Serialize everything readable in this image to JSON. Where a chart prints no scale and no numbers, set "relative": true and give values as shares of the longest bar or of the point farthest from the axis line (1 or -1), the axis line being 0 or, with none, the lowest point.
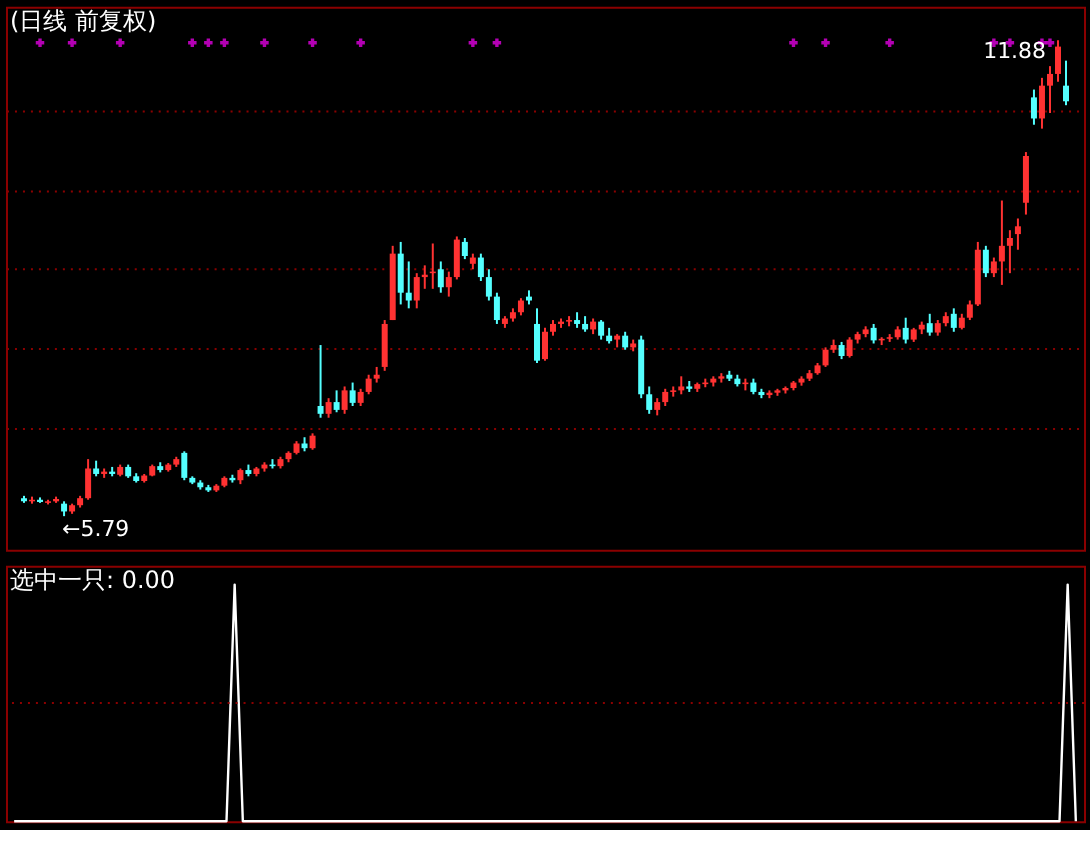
{
  "chart_data": [
    {
      "type": "candlestick",
      "title": "(日线 前复权)",
      "categories": [
        null,
        null,
        null,
        null,
        null,
        null,
        null,
        null,
        null,
        null,
        null,
        null,
        null,
        null,
        null,
        null,
        null,
        null,
        null,
        null,
        null,
        null,
        null,
        null,
        null,
        null,
        null,
        null,
        null,
        null,
        null,
        null,
        null,
        null,
        null,
        null,
        null,
        null,
        null,
        null,
        null,
        null,
        null,
        null,
        null,
        null,
        null,
        null,
        null,
        null,
        null,
        null,
        null,
        null,
        null,
        null,
        null,
        null,
        null,
        null,
        null,
        null,
        null,
        null,
        null,
        null,
        null,
        null,
        null,
        null,
        null,
        null,
        null,
        null,
        null,
        null,
        null,
        null,
        null,
        null,
        null,
        null,
        null,
        null,
        null,
        null,
        null,
        null,
        null,
        null,
        null,
        null,
        null,
        null,
        null,
        null,
        null,
        null,
        null,
        null,
        null,
        null,
        null,
        null,
        null,
        null,
        null,
        null,
        null,
        null,
        null,
        null,
        null,
        null,
        null,
        null,
        null,
        null,
        null,
        null,
        null,
        null,
        null,
        null,
        null,
        null,
        null,
        null,
        null,
        null,
        null
      ],
      "ohlc": [
        [
          6.02,
          6.05,
          5.96,
          5.98
        ],
        [
          5.98,
          6.04,
          5.95,
          6.0
        ],
        [
          6.0,
          6.03,
          5.96,
          5.97
        ],
        [
          5.96,
          6.0,
          5.94,
          5.98
        ],
        [
          5.98,
          6.04,
          5.96,
          6.01
        ],
        [
          5.95,
          5.98,
          5.79,
          5.85
        ],
        [
          5.85,
          5.95,
          5.82,
          5.93
        ],
        [
          5.93,
          6.05,
          5.9,
          6.02
        ],
        [
          6.02,
          6.52,
          6.0,
          6.4
        ],
        [
          6.4,
          6.5,
          6.3,
          6.33
        ],
        [
          6.33,
          6.4,
          6.28,
          6.36
        ],
        [
          6.36,
          6.42,
          6.3,
          6.33
        ],
        [
          6.32,
          6.45,
          6.3,
          6.42
        ],
        [
          6.42,
          6.45,
          6.28,
          6.3
        ],
        [
          6.3,
          6.34,
          6.22,
          6.24
        ],
        [
          6.24,
          6.33,
          6.22,
          6.31
        ],
        [
          6.31,
          6.45,
          6.3,
          6.43
        ],
        [
          6.43,
          6.48,
          6.35,
          6.38
        ],
        [
          6.38,
          6.47,
          6.36,
          6.45
        ],
        [
          6.45,
          6.55,
          6.42,
          6.52
        ],
        [
          6.6,
          6.62,
          6.25,
          6.28
        ],
        [
          6.28,
          6.3,
          6.2,
          6.22
        ],
        [
          6.22,
          6.25,
          6.13,
          6.16
        ],
        [
          6.16,
          6.19,
          6.1,
          6.12
        ],
        [
          6.12,
          6.2,
          6.1,
          6.18
        ],
        [
          6.18,
          6.3,
          6.16,
          6.28
        ],
        [
          6.28,
          6.32,
          6.22,
          6.25
        ],
        [
          6.25,
          6.4,
          6.2,
          6.38
        ],
        [
          6.38,
          6.45,
          6.3,
          6.33
        ],
        [
          6.33,
          6.42,
          6.3,
          6.4
        ],
        [
          6.4,
          6.48,
          6.36,
          6.45
        ],
        [
          6.45,
          6.52,
          6.4,
          6.43
        ],
        [
          6.43,
          6.55,
          6.4,
          6.52
        ],
        [
          6.52,
          6.62,
          6.48,
          6.6
        ],
        [
          6.6,
          6.75,
          6.58,
          6.72
        ],
        [
          6.72,
          6.8,
          6.62,
          6.66
        ],
        [
          6.66,
          6.85,
          6.64,
          6.82
        ],
        [
          7.2,
          7.98,
          7.05,
          7.1
        ],
        [
          7.1,
          7.3,
          7.05,
          7.25
        ],
        [
          7.25,
          7.4,
          7.12,
          7.15
        ],
        [
          7.15,
          7.45,
          7.1,
          7.4
        ],
        [
          7.4,
          7.5,
          7.2,
          7.24
        ],
        [
          7.24,
          7.42,
          7.2,
          7.38
        ],
        [
          7.38,
          7.6,
          7.35,
          7.55
        ],
        [
          7.55,
          7.7,
          7.5,
          7.6
        ],
        [
          7.7,
          8.3,
          7.65,
          8.25
        ],
        [
          8.3,
          9.25,
          8.3,
          9.15
        ],
        [
          9.15,
          9.3,
          8.5,
          8.65
        ],
        [
          8.65,
          9.05,
          8.45,
          8.55
        ],
        [
          8.55,
          8.9,
          8.45,
          8.85
        ],
        [
          8.85,
          9.0,
          8.7,
          8.88
        ],
        [
          8.9,
          9.28,
          8.7,
          8.92
        ],
        [
          8.95,
          9.05,
          8.65,
          8.72
        ],
        [
          8.72,
          8.92,
          8.6,
          8.85
        ],
        [
          8.85,
          9.37,
          8.82,
          9.33
        ],
        [
          9.3,
          9.35,
          9.08,
          9.12
        ],
        [
          9.02,
          9.15,
          8.95,
          9.1
        ],
        [
          9.1,
          9.15,
          8.8,
          8.85
        ],
        [
          8.85,
          8.95,
          8.55,
          8.6
        ],
        [
          8.6,
          8.65,
          8.25,
          8.3
        ],
        [
          8.25,
          8.35,
          8.2,
          8.32
        ],
        [
          8.32,
          8.45,
          8.28,
          8.4
        ],
        [
          8.4,
          8.58,
          8.36,
          8.55
        ],
        [
          8.6,
          8.68,
          8.5,
          8.55
        ],
        [
          8.25,
          8.45,
          7.75,
          7.78
        ],
        [
          7.8,
          8.2,
          7.78,
          8.15
        ],
        [
          8.15,
          8.3,
          8.1,
          8.25
        ],
        [
          8.25,
          8.32,
          8.2,
          8.28
        ],
        [
          8.28,
          8.35,
          8.22,
          8.3
        ],
        [
          8.3,
          8.4,
          8.2,
          8.25
        ],
        [
          8.25,
          8.35,
          8.15,
          8.18
        ],
        [
          8.18,
          8.32,
          8.12,
          8.28
        ],
        [
          8.28,
          8.3,
          8.05,
          8.1
        ],
        [
          8.1,
          8.2,
          8.0,
          8.03
        ],
        [
          8.05,
          8.12,
          7.95,
          8.1
        ],
        [
          8.1,
          8.15,
          7.92,
          7.95
        ],
        [
          7.95,
          8.05,
          7.9,
          8.0
        ],
        [
          8.05,
          8.1,
          7.3,
          7.35
        ],
        [
          7.35,
          7.45,
          7.1,
          7.15
        ],
        [
          7.15,
          7.3,
          7.08,
          7.25
        ],
        [
          7.25,
          7.42,
          7.2,
          7.38
        ],
        [
          7.38,
          7.45,
          7.32,
          7.4
        ],
        [
          7.4,
          7.58,
          7.35,
          7.45
        ],
        [
          7.45,
          7.52,
          7.38,
          7.42
        ],
        [
          7.42,
          7.5,
          7.38,
          7.48
        ],
        [
          7.48,
          7.55,
          7.44,
          7.5
        ],
        [
          7.5,
          7.58,
          7.45,
          7.55
        ],
        [
          7.55,
          7.62,
          7.5,
          7.58
        ],
        [
          7.6,
          7.65,
          7.52,
          7.55
        ],
        [
          7.55,
          7.6,
          7.45,
          7.48
        ],
        [
          7.48,
          7.55,
          7.4,
          7.5
        ],
        [
          7.5,
          7.55,
          7.35,
          7.38
        ],
        [
          7.38,
          7.42,
          7.3,
          7.34
        ],
        [
          7.34,
          7.4,
          7.3,
          7.37
        ],
        [
          7.37,
          7.42,
          7.33,
          7.4
        ],
        [
          7.4,
          7.45,
          7.36,
          7.43
        ],
        [
          7.43,
          7.52,
          7.4,
          7.5
        ],
        [
          7.5,
          7.58,
          7.46,
          7.55
        ],
        [
          7.55,
          7.66,
          7.52,
          7.62
        ],
        [
          7.62,
          7.75,
          7.6,
          7.72
        ],
        [
          7.72,
          7.95,
          7.7,
          7.92
        ],
        [
          7.92,
          8.05,
          7.88,
          7.98
        ],
        [
          7.98,
          8.02,
          7.8,
          7.84
        ],
        [
          7.84,
          8.08,
          7.82,
          8.05
        ],
        [
          8.05,
          8.15,
          8.0,
          8.12
        ],
        [
          8.12,
          8.22,
          8.08,
          8.18
        ],
        [
          8.2,
          8.25,
          8.0,
          8.04
        ],
        [
          8.04,
          8.08,
          7.98,
          8.06
        ],
        [
          8.06,
          8.12,
          8.02,
          8.08
        ],
        [
          8.08,
          8.22,
          8.05,
          8.18
        ],
        [
          8.2,
          8.33,
          8.0,
          8.05
        ],
        [
          8.05,
          8.2,
          8.02,
          8.18
        ],
        [
          8.18,
          8.28,
          8.12,
          8.24
        ],
        [
          8.26,
          8.38,
          8.1,
          8.14
        ],
        [
          8.14,
          8.3,
          8.1,
          8.26
        ],
        [
          8.26,
          8.4,
          8.22,
          8.35
        ],
        [
          8.38,
          8.45,
          8.15,
          8.2
        ],
        [
          8.2,
          8.38,
          8.18,
          8.33
        ],
        [
          8.33,
          8.55,
          8.3,
          8.5
        ],
        [
          8.5,
          9.3,
          8.48,
          9.2
        ],
        [
          9.2,
          9.25,
          8.85,
          8.9
        ],
        [
          8.9,
          9.1,
          8.85,
          9.05
        ],
        [
          9.05,
          9.83,
          8.75,
          9.25
        ],
        [
          9.25,
          9.45,
          8.9,
          9.35
        ],
        [
          9.4,
          9.6,
          9.2,
          9.5
        ],
        [
          9.8,
          10.45,
          9.65,
          10.4
        ],
        [
          11.15,
          11.25,
          10.8,
          10.88
        ],
        [
          10.88,
          11.4,
          10.75,
          11.3
        ],
        [
          11.3,
          11.55,
          10.95,
          11.45
        ],
        [
          11.45,
          11.88,
          11.35,
          11.8
        ],
        [
          11.3,
          11.62,
          11.05,
          11.1
        ]
      ],
      "colors": [
        "#54ffff",
        "#ff3232",
        "#54ffff",
        "#ff3232",
        "#ff3232",
        "#54ffff",
        "#ff3232",
        "#ff3232",
        "#ff3232",
        "#54ffff",
        "#ff3232",
        "#54ffff",
        "#ff3232",
        "#54ffff",
        "#54ffff",
        "#ff3232",
        "#ff3232",
        "#54ffff",
        "#ff3232",
        "#ff3232",
        "#54ffff",
        "#54ffff",
        "#54ffff",
        "#54ffff",
        "#ff3232",
        "#ff3232",
        "#54ffff",
        "#ff3232",
        "#54ffff",
        "#ff3232",
        "#ff3232",
        "#54ffff",
        "#ff3232",
        "#ff3232",
        "#ff3232",
        "#54ffff",
        "#ff3232",
        "#54ffff",
        "#ff3232",
        "#54ffff",
        "#ff3232",
        "#54ffff",
        "#ff3232",
        "#ff3232",
        "#ff3232",
        "#ff3232",
        "#ff3232",
        "#54ffff",
        "#54ffff",
        "#ff3232",
        "#ff3232",
        "#ff3232",
        "#54ffff",
        "#ff3232",
        "#ff3232",
        "#54ffff",
        "#ff3232",
        "#54ffff",
        "#54ffff",
        "#54ffff",
        "#ff3232",
        "#ff3232",
        "#ff3232",
        "#54ffff",
        "#54ffff",
        "#ff3232",
        "#ff3232",
        "#ff3232",
        "#ff3232",
        "#54ffff",
        "#54ffff",
        "#ff3232",
        "#54ffff",
        "#54ffff",
        "#ff3232",
        "#54ffff",
        "#ff3232",
        "#54ffff",
        "#54ffff",
        "#ff3232",
        "#ff3232",
        "#ff3232",
        "#ff3232",
        "#54ffff",
        "#ff3232",
        "#ff3232",
        "#ff3232",
        "#ff3232",
        "#54ffff",
        "#54ffff",
        "#ff3232",
        "#54ffff",
        "#54ffff",
        "#ff3232",
        "#ff3232",
        "#ff3232",
        "#ff3232",
        "#ff3232",
        "#ff3232",
        "#ff3232",
        "#ff3232",
        "#ff3232",
        "#54ffff",
        "#ff3232",
        "#ff3232",
        "#ff3232",
        "#54ffff",
        "#ff3232",
        "#ff3232",
        "#ff3232",
        "#54ffff",
        "#ff3232",
        "#ff3232",
        "#54ffff",
        "#ff3232",
        "#ff3232",
        "#54ffff",
        "#ff3232",
        "#ff3232",
        "#ff3232",
        "#54ffff",
        "#ff3232",
        "#ff3232",
        "#ff3232",
        "#ff3232",
        "#ff3232",
        "#54ffff",
        "#ff3232",
        "#ff3232",
        "#ff3232",
        "#54ffff"
      ],
      "series": [
        {
          "type": "scatter",
          "marker": "cross",
          "color": "#ff00ff",
          "values": [
            null,
            null,
            11.85,
            null,
            null,
            null,
            11.85,
            null,
            null,
            null,
            null,
            null,
            11.85,
            null,
            null,
            null,
            null,
            null,
            null,
            null,
            null,
            11.85,
            null,
            11.85,
            null,
            11.85,
            null,
            null,
            null,
            null,
            11.85,
            null,
            null,
            null,
            null,
            null,
            11.85,
            null,
            null,
            null,
            null,
            null,
            11.85,
            null,
            null,
            null,
            null,
            null,
            null,
            null,
            null,
            null,
            null,
            null,
            null,
            null,
            11.85,
            null,
            null,
            11.85,
            null,
            null,
            null,
            null,
            null,
            null,
            null,
            null,
            null,
            null,
            null,
            null,
            null,
            null,
            null,
            null,
            null,
            null,
            null,
            null,
            null,
            null,
            null,
            null,
            null,
            null,
            null,
            null,
            null,
            null,
            null,
            null,
            null,
            null,
            null,
            null,
            11.85,
            null,
            null,
            null,
            11.85,
            null,
            null,
            null,
            null,
            null,
            null,
            null,
            11.85,
            null,
            null,
            null,
            null,
            null,
            null,
            null,
            null,
            null,
            null,
            null,
            null,
            11.85,
            null,
            11.85,
            null,
            null,
            null,
            11.85,
            11.85,
            null,
            null
          ]
        }
      ],
      "ylim": [
        5.36,
        12.31
      ],
      "yticks": [
        {
          "value": 6.93,
          "label": null
        },
        {
          "value": 7.94,
          "label": null
        },
        {
          "value": 8.95,
          "label": null
        },
        {
          "value": 9.96,
          "label": null
        },
        {
          "value": 10.97,
          "label": null
        }
      ],
      "grid": "y",
      "tick_labels": false,
      "annotations": [
        {
          "text": "11.88",
          "y": 11.88
        },
        "←5.79"
      ]
    },
    {
      "type": "line",
      "title": "选中一只: 0.00",
      "relative": true,
      "color": "#ffffff",
      "categories": [
        null,
        null,
        null,
        null,
        null,
        null,
        null,
        null,
        null,
        null,
        null,
        null,
        null,
        null,
        null,
        null,
        null,
        null,
        null,
        null,
        null,
        null,
        null,
        null,
        null,
        null,
        null,
        null,
        null,
        null,
        null,
        null,
        null,
        null,
        null,
        null,
        null,
        null,
        null,
        null,
        null,
        null,
        null,
        null,
        null,
        null,
        null,
        null,
        null,
        null,
        null,
        null,
        null,
        null,
        null,
        null,
        null,
        null,
        null,
        null,
        null,
        null,
        null,
        null,
        null,
        null,
        null,
        null,
        null,
        null,
        null,
        null,
        null,
        null,
        null,
        null,
        null,
        null,
        null,
        null,
        null,
        null,
        null,
        null,
        null,
        null,
        null,
        null,
        null,
        null,
        null,
        null,
        null,
        null,
        null,
        null,
        null,
        null,
        null,
        null,
        null,
        null,
        null,
        null,
        null,
        null,
        null,
        null,
        null,
        null,
        null,
        null,
        null,
        null,
        null,
        null,
        null,
        null,
        null,
        null,
        null,
        null,
        null,
        null,
        null,
        null,
        null,
        null,
        null,
        null,
        null
      ],
      "values": [
        0,
        0,
        0,
        0,
        0,
        0,
        0,
        0,
        0,
        0,
        0,
        0,
        0,
        0,
        0,
        0,
        0,
        0,
        0,
        0,
        0,
        0,
        0,
        0,
        0,
        0,
        0,
        1,
        0,
        0,
        0,
        0,
        0,
        0,
        0,
        0,
        0,
        0,
        0,
        0,
        0,
        0,
        0,
        0,
        0,
        0,
        0,
        0,
        0,
        0,
        0,
        0,
        0,
        0,
        0,
        0,
        0,
        0,
        0,
        0,
        0,
        0,
        0,
        0,
        0,
        0,
        0,
        0,
        0,
        0,
        0,
        0,
        0,
        0,
        0,
        0,
        0,
        0,
        0,
        0,
        0,
        0,
        0,
        0,
        0,
        0,
        0,
        0,
        0,
        0,
        0,
        0,
        0,
        0,
        0,
        0,
        0,
        0,
        0,
        0,
        0,
        0,
        0,
        0,
        0,
        0,
        0,
        0,
        0,
        0,
        0,
        0,
        0,
        0,
        0,
        0,
        0,
        0,
        0,
        0,
        0,
        0,
        0,
        0,
        0,
        0,
        0,
        0,
        0,
        1,
        0
      ],
      "ref_lines": [
        {
          "axis": "y",
          "value": 0.5,
          "color": "#8b0000",
          "line_style": "dotted"
        }
      ]
    }
  ]
}
